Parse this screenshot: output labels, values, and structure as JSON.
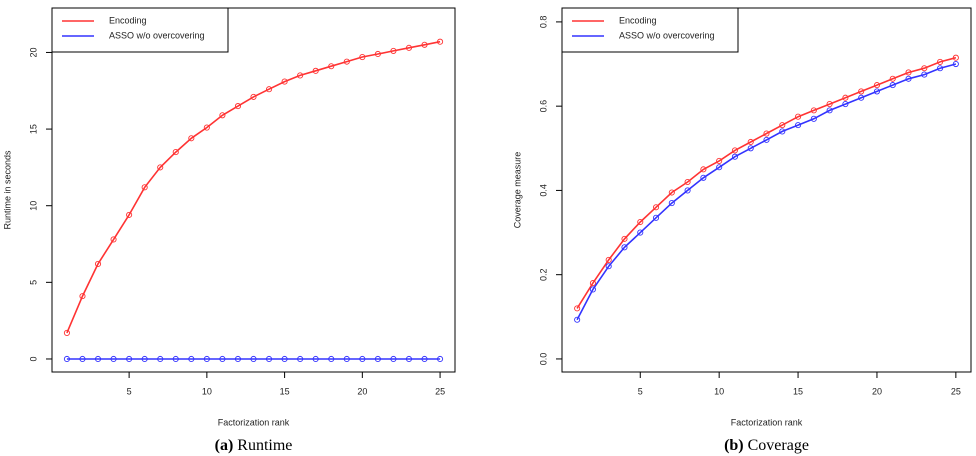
{
  "chart_data": [
    {
      "type": "line",
      "caption_label": "(a)",
      "caption_text": "Runtime",
      "xlabel": "Factorization rank",
      "ylabel": "Runtime in seconds",
      "x": [
        1,
        2,
        3,
        4,
        5,
        6,
        7,
        8,
        9,
        10,
        11,
        12,
        13,
        14,
        15,
        16,
        17,
        18,
        19,
        20,
        21,
        22,
        23,
        24,
        25
      ],
      "xlim": [
        0.04,
        25.96
      ],
      "xticks": [
        5,
        10,
        15,
        20,
        25
      ],
      "ylim": [
        -0.85,
        22.9
      ],
      "yticks": [
        0,
        5,
        10,
        15,
        20
      ],
      "series": [
        {
          "name": "Encoding",
          "color": "#ff3333",
          "values": [
            1.7,
            4.1,
            6.2,
            7.8,
            9.4,
            11.2,
            12.5,
            13.5,
            14.4,
            15.1,
            15.9,
            16.5,
            17.1,
            17.6,
            18.1,
            18.5,
            18.8,
            19.1,
            19.4,
            19.7,
            19.9,
            20.1,
            20.3,
            20.5,
            20.7
          ]
        },
        {
          "name": "ASSO w/o overcovering",
          "color": "#3333ff",
          "values": [
            0,
            0,
            0,
            0,
            0,
            0,
            0,
            0,
            0,
            0,
            0,
            0,
            0,
            0,
            0,
            0,
            0,
            0,
            0,
            0,
            0,
            0,
            0,
            0,
            0
          ]
        }
      ]
    },
    {
      "type": "line",
      "caption_label": "(b)",
      "caption_text": "Coverage",
      "xlabel": "Factorization rank",
      "ylabel": "Coverage measure",
      "x": [
        1,
        2,
        3,
        4,
        5,
        6,
        7,
        8,
        9,
        10,
        11,
        12,
        13,
        14,
        15,
        16,
        17,
        18,
        19,
        20,
        21,
        22,
        23,
        24,
        25
      ],
      "xlim": [
        0.04,
        25.96
      ],
      "xticks": [
        5,
        10,
        15,
        20,
        25
      ],
      "ylim": [
        -0.031,
        0.833
      ],
      "yticks": [
        {
          "value": 0,
          "label": "0.0"
        },
        0.2,
        0.4,
        0.6,
        0.8
      ],
      "series": [
        {
          "name": "Encoding",
          "color": "#ff3333",
          "values": [
            0.12,
            0.18,
            0.235,
            0.285,
            0.325,
            0.36,
            0.395,
            0.42,
            0.45,
            0.47,
            0.495,
            0.515,
            0.535,
            0.555,
            0.575,
            0.59,
            0.605,
            0.62,
            0.635,
            0.65,
            0.665,
            0.68,
            0.69,
            0.705,
            0.715
          ]
        },
        {
          "name": "ASSO w/o overcovering",
          "color": "#3333ff",
          "values": [
            0.093,
            0.165,
            0.22,
            0.265,
            0.3,
            0.335,
            0.37,
            0.4,
            0.43,
            0.455,
            0.48,
            0.5,
            0.52,
            0.54,
            0.555,
            0.57,
            0.59,
            0.605,
            0.62,
            0.635,
            0.65,
            0.665,
            0.675,
            0.69,
            0.7
          ]
        }
      ]
    }
  ]
}
